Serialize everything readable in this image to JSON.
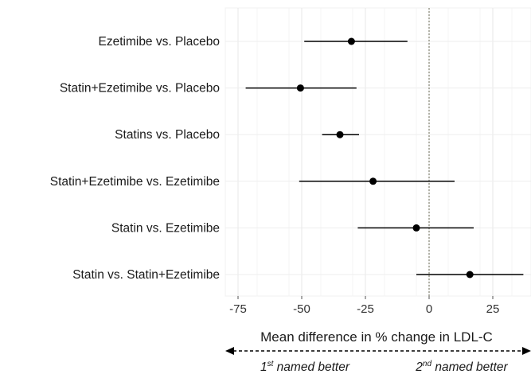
{
  "chart_data": {
    "type": "forest",
    "categories": [
      "Ezetimibe vs. Placebo",
      "Statin+Ezetimibe vs. Placebo",
      "Statins vs. Placebo",
      "Statin+Ezetimibe vs. Ezetimibe",
      "Statin vs. Ezetimibe",
      "Statin vs. Statin+Ezetimibe"
    ],
    "estimates": [
      -30.5,
      -50.5,
      -35,
      -22,
      -5,
      16
    ],
    "ci_lower": [
      -49,
      -72,
      -42,
      -51,
      -28,
      -5
    ],
    "ci_upper": [
      -8.5,
      -28.5,
      -27.5,
      10,
      17.5,
      37
    ],
    "xlim": [
      -80,
      40
    ],
    "xticks": [
      -75,
      -50,
      -25,
      0,
      25
    ],
    "xtick_labels": [
      "-75",
      "-50",
      "-25",
      "0",
      "25"
    ],
    "reference_line": 0,
    "grid": true,
    "xlabel": "Mean difference in % change in LDL-C",
    "direction": {
      "left": {
        "base": "1",
        "sup": "st",
        "rest": " named better"
      },
      "right": {
        "base": "2",
        "sup": "nd",
        "rest": " named better"
      }
    }
  }
}
